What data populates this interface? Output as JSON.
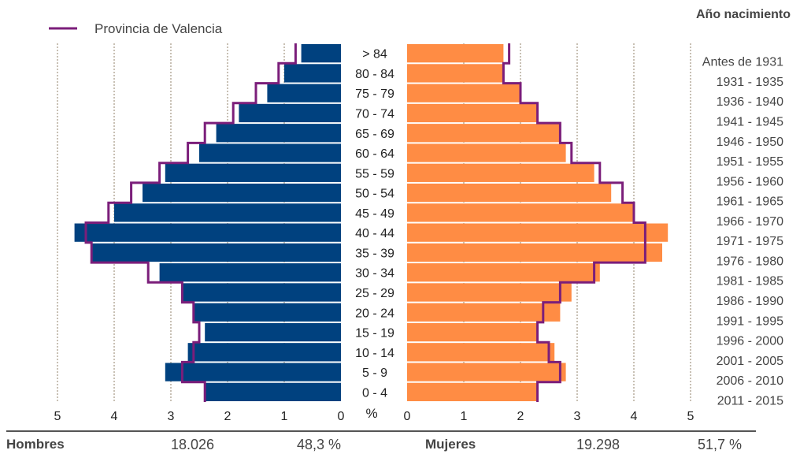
{
  "chart_data": {
    "type": "bar",
    "subtype": "population-pyramid",
    "legend": {
      "label": "Provincia de Valencia",
      "position": "top-left"
    },
    "birth_year_title": "Año nacimiento",
    "axis_unit_label": "%",
    "xlim": [
      0,
      5
    ],
    "x_ticks": [
      "5",
      "4",
      "3",
      "2",
      "1",
      "0"
    ],
    "x_ticks_right": [
      "0",
      "1",
      "2",
      "3",
      "4",
      "5"
    ],
    "grid": true,
    "age_groups": [
      "> 84",
      "80 - 84",
      "75 - 79",
      "70 - 74",
      "65 - 69",
      "60 - 64",
      "55 - 59",
      "50 - 54",
      "45 - 49",
      "40 - 44",
      "35 - 39",
      "30 - 34",
      "25 - 29",
      "20 - 24",
      "15 - 19",
      "10 - 14",
      "5 - 9",
      "0 - 4"
    ],
    "birth_years": [
      "Antes de 1931",
      "1931 - 1935",
      "1936 - 1940",
      "1941 - 1945",
      "1946 - 1950",
      "1951 - 1955",
      "1956 - 1960",
      "1961 - 1965",
      "1966 - 1970",
      "1971 - 1975",
      "1976 - 1980",
      "1981 - 1985",
      "1986 - 1990",
      "1991 - 1995",
      "1996 - 2000",
      "2001 - 2005",
      "2006 - 2010",
      "2011 - 2015"
    ],
    "series": [
      {
        "name": "Hombres",
        "side": "left",
        "color": "#00417f",
        "values": [
          0.7,
          1.0,
          1.3,
          1.8,
          2.2,
          2.5,
          3.1,
          3.5,
          4.0,
          4.7,
          4.4,
          3.2,
          2.8,
          2.6,
          2.4,
          2.7,
          3.1,
          2.4
        ]
      },
      {
        "name": "Mujeres",
        "side": "right",
        "color": "#ff8c44",
        "values": [
          1.7,
          1.7,
          2.0,
          2.3,
          2.7,
          2.8,
          3.3,
          3.6,
          4.0,
          4.6,
          4.5,
          3.4,
          2.9,
          2.7,
          2.3,
          2.6,
          2.8,
          2.3
        ]
      },
      {
        "name": "Provincia de Valencia",
        "role": "reference-outline",
        "color": "#7b1e7a",
        "male_values": [
          0.8,
          1.1,
          1.5,
          1.9,
          2.4,
          2.7,
          3.2,
          3.7,
          4.1,
          4.5,
          4.4,
          3.4,
          2.8,
          2.6,
          2.5,
          2.6,
          2.8,
          2.4
        ],
        "female_values": [
          1.8,
          1.7,
          2.0,
          2.3,
          2.7,
          2.9,
          3.4,
          3.8,
          4.0,
          4.2,
          4.2,
          3.3,
          2.7,
          2.4,
          2.3,
          2.5,
          2.7,
          2.3
        ]
      }
    ],
    "totals": {
      "men_label": "Hombres",
      "men_count": "18.026",
      "men_pct": "48,3 %",
      "women_label": "Mujeres",
      "women_count": "19.298",
      "women_pct": "51,7 %"
    }
  }
}
